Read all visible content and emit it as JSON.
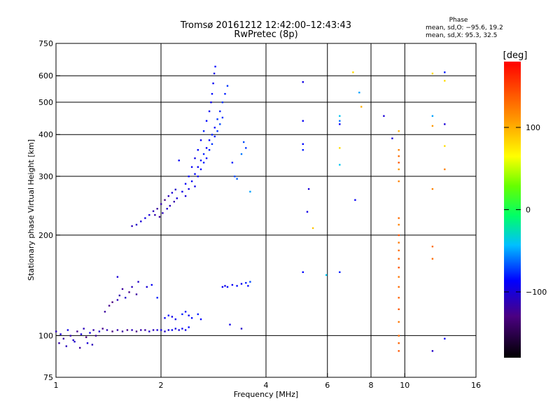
{
  "header": {
    "title_line1": "Tromsø 20161212 12:42:00–12:43:43",
    "title_line2": "RwPretec (8p)"
  },
  "phase_stats": {
    "heading": "Phase",
    "line_o": "mean, sd,O: −95.6, 19.2",
    "line_x": "mean, sd,X:  95.3, 32.5"
  },
  "colorbar": {
    "label": "[deg]",
    "ticks": [
      {
        "value": 100,
        "label": "100"
      },
      {
        "value": 0,
        "label": "0"
      },
      {
        "value": -100,
        "label": "−100"
      }
    ],
    "range": [
      -180,
      180
    ]
  },
  "chart_data": {
    "type": "scatter",
    "xlabel": "Frequency [MHz]",
    "ylabel": "Stationary phase Virtual Height [km]",
    "xscale": "log",
    "yscale": "log",
    "xlim": [
      1,
      16
    ],
    "ylim": [
      75,
      750
    ],
    "xticks": [
      {
        "value": 1,
        "label": "1"
      },
      {
        "value": 2,
        "label": "2"
      },
      {
        "value": 4,
        "label": "4"
      },
      {
        "value": 6,
        "label": "6"
      },
      {
        "value": 8,
        "label": "8"
      },
      {
        "value": 10,
        "label": "10"
      },
      {
        "value": 16,
        "label": "16"
      }
    ],
    "yticks": [
      {
        "value": 75,
        "label": "75"
      },
      {
        "value": 100,
        "label": "100"
      },
      {
        "value": 200,
        "label": "200"
      },
      {
        "value": 300,
        "label": "300"
      },
      {
        "value": 400,
        "label": "400"
      },
      {
        "value": 500,
        "label": "500"
      },
      {
        "value": 600,
        "label": "600"
      },
      {
        "value": 750,
        "label": "750"
      }
    ],
    "grid_x": [
      2,
      4,
      6,
      8,
      10
    ],
    "grid_y": [
      100,
      200,
      300,
      400,
      500,
      600
    ],
    "series": [
      {
        "points": [
          [
            1.0,
            103,
            -110
          ],
          [
            1.03,
            101,
            -100
          ],
          [
            1.05,
            98,
            -120
          ],
          [
            1.08,
            104,
            -95
          ],
          [
            1.1,
            100,
            -115
          ],
          [
            1.12,
            97,
            -105
          ],
          [
            1.15,
            103,
            -125
          ],
          [
            1.18,
            101,
            -100
          ],
          [
            1.2,
            105,
            -110
          ],
          [
            1.22,
            99,
            -130
          ],
          [
            1.25,
            102,
            -95
          ],
          [
            1.28,
            104,
            -115
          ],
          [
            1.3,
            100,
            -120
          ],
          [
            1.33,
            103,
            -105
          ],
          [
            1.36,
            105,
            -125
          ],
          [
            1.4,
            104,
            -110
          ],
          [
            1.45,
            103,
            -130
          ],
          [
            1.5,
            104,
            -115
          ],
          [
            1.55,
            103,
            -120
          ],
          [
            1.6,
            104,
            -125
          ],
          [
            1.65,
            104,
            -110
          ],
          [
            1.7,
            103,
            -130
          ],
          [
            1.75,
            104,
            -115
          ],
          [
            1.8,
            104,
            -120
          ],
          [
            1.85,
            103,
            -105
          ],
          [
            1.9,
            104,
            -110
          ],
          [
            1.95,
            104,
            -100
          ],
          [
            2.0,
            104,
            -95
          ],
          [
            2.05,
            103,
            -105
          ],
          [
            2.1,
            104,
            -100
          ],
          [
            2.15,
            104,
            -90
          ],
          [
            2.2,
            105,
            -95
          ],
          [
            2.25,
            104,
            -100
          ],
          [
            2.3,
            105,
            -90
          ],
          [
            2.35,
            104,
            -95
          ],
          [
            2.4,
            106,
            -85
          ],
          [
            1.02,
            95,
            -115
          ],
          [
            1.07,
            93,
            -110
          ],
          [
            1.13,
            96,
            -105
          ],
          [
            1.17,
            92,
            -120
          ],
          [
            1.23,
            95,
            -100
          ],
          [
            1.27,
            94,
            -110
          ],
          [
            1.38,
            118,
            -120
          ],
          [
            1.42,
            123,
            -125
          ],
          [
            1.45,
            126,
            -130
          ],
          [
            1.5,
            128,
            -110
          ],
          [
            1.52,
            132,
            -115
          ],
          [
            1.55,
            138,
            -120
          ],
          [
            1.58,
            130,
            -105
          ],
          [
            1.62,
            135,
            -125
          ],
          [
            1.5,
            150,
            -100
          ],
          [
            1.65,
            140,
            -110
          ],
          [
            1.7,
            133,
            -120
          ],
          [
            1.72,
            145,
            -105
          ],
          [
            1.82,
            140,
            -100
          ],
          [
            1.88,
            142,
            -90
          ],
          [
            1.95,
            130,
            -80
          ],
          [
            2.05,
            113,
            -90
          ],
          [
            2.1,
            115,
            -85
          ],
          [
            2.15,
            114,
            -95
          ],
          [
            2.2,
            112,
            -90
          ],
          [
            2.3,
            116,
            -80
          ],
          [
            2.35,
            118,
            -85
          ],
          [
            2.4,
            115,
            -90
          ],
          [
            2.45,
            113,
            -85
          ],
          [
            2.55,
            116,
            -80
          ],
          [
            2.6,
            112,
            -85
          ],
          [
            3.0,
            140,
            -90
          ],
          [
            3.05,
            141,
            -95
          ],
          [
            3.1,
            140,
            -85
          ],
          [
            3.2,
            142,
            -90
          ],
          [
            3.3,
            141,
            -85
          ],
          [
            3.4,
            143,
            -90
          ],
          [
            3.5,
            144,
            -80
          ],
          [
            3.55,
            141,
            -85
          ],
          [
            3.6,
            145,
            -70
          ],
          [
            1.65,
            213,
            -110
          ],
          [
            1.7,
            215,
            -105
          ],
          [
            1.75,
            220,
            -100
          ],
          [
            1.8,
            225,
            -95
          ],
          [
            1.85,
            230,
            -100
          ],
          [
            1.9,
            236,
            -110
          ],
          [
            1.95,
            240,
            -120
          ],
          [
            2.0,
            248,
            -115
          ],
          [
            2.05,
            255,
            -125
          ],
          [
            2.1,
            262,
            -110
          ],
          [
            2.15,
            268,
            -100
          ],
          [
            2.2,
            274,
            -105
          ],
          [
            1.92,
            230,
            -115
          ],
          [
            1.98,
            227,
            -120
          ],
          [
            2.02,
            233,
            -110
          ],
          [
            2.08,
            240,
            -105
          ],
          [
            2.12,
            245,
            -110
          ],
          [
            2.18,
            252,
            -115
          ],
          [
            2.22,
            258,
            -100
          ],
          [
            2.3,
            270,
            -95
          ],
          [
            2.35,
            285,
            -90
          ],
          [
            2.4,
            300,
            -85
          ],
          [
            2.45,
            320,
            -90
          ],
          [
            2.5,
            340,
            -95
          ],
          [
            2.55,
            360,
            -85
          ],
          [
            2.6,
            385,
            -90
          ],
          [
            2.65,
            410,
            -80
          ],
          [
            2.7,
            440,
            -85
          ],
          [
            2.75,
            470,
            -90
          ],
          [
            2.78,
            500,
            -95
          ],
          [
            2.8,
            530,
            -85
          ],
          [
            2.82,
            570,
            -90
          ],
          [
            2.84,
            610,
            -95
          ],
          [
            2.86,
            640,
            -85
          ],
          [
            2.35,
            262,
            -100
          ],
          [
            2.4,
            275,
            -95
          ],
          [
            2.45,
            290,
            -90
          ],
          [
            2.5,
            305,
            -85
          ],
          [
            2.55,
            320,
            -90
          ],
          [
            2.6,
            335,
            -85
          ],
          [
            2.65,
            350,
            -80
          ],
          [
            2.7,
            365,
            -90
          ],
          [
            2.75,
            385,
            -85
          ],
          [
            2.8,
            400,
            -80
          ],
          [
            2.85,
            420,
            -85
          ],
          [
            2.9,
            445,
            -75
          ],
          [
            2.95,
            470,
            -80
          ],
          [
            3.0,
            500,
            -75
          ],
          [
            3.05,
            530,
            -80
          ],
          [
            3.1,
            560,
            -75
          ],
          [
            2.5,
            280,
            -95
          ],
          [
            2.55,
            300,
            -90
          ],
          [
            2.6,
            315,
            -85
          ],
          [
            2.65,
            330,
            -80
          ],
          [
            2.7,
            340,
            -85
          ],
          [
            2.75,
            360,
            -80
          ],
          [
            2.8,
            375,
            -75
          ],
          [
            2.85,
            395,
            -80
          ],
          [
            2.9,
            410,
            -75
          ],
          [
            2.95,
            430,
            -70
          ],
          [
            3.0,
            450,
            -75
          ],
          [
            2.25,
            335,
            -90
          ],
          [
            3.2,
            330,
            -80
          ],
          [
            3.25,
            300,
            -70
          ],
          [
            3.3,
            295,
            -65
          ],
          [
            3.4,
            350,
            -60
          ],
          [
            3.45,
            380,
            -70
          ],
          [
            3.5,
            365,
            -75
          ],
          [
            3.6,
            270,
            -50
          ],
          [
            3.15,
            108,
            -95
          ],
          [
            3.4,
            105,
            -105
          ],
          [
            5.1,
            575,
            -95
          ],
          [
            5.1,
            440,
            -90
          ],
          [
            5.1,
            375,
            -85
          ],
          [
            5.1,
            360,
            -80
          ],
          [
            5.3,
            275,
            -100
          ],
          [
            5.45,
            210,
            90
          ],
          [
            5.25,
            235,
            -95
          ],
          [
            5.1,
            155,
            -85
          ],
          [
            5.95,
            152,
            -40
          ],
          [
            6.5,
            155,
            -80
          ],
          [
            6.5,
            455,
            -40
          ],
          [
            6.5,
            440,
            -60
          ],
          [
            6.5,
            430,
            -90
          ],
          [
            6.5,
            365,
            80
          ],
          [
            6.5,
            325,
            -40
          ],
          [
            7.1,
            615,
            80
          ],
          [
            7.4,
            535,
            -50
          ],
          [
            7.5,
            485,
            100
          ],
          [
            7.2,
            255,
            -90
          ],
          [
            8.7,
            455,
            -100
          ],
          [
            9.2,
            390,
            -100
          ],
          [
            9.6,
            410,
            100
          ],
          [
            9.6,
            360,
            120
          ],
          [
            9.6,
            345,
            130
          ],
          [
            9.6,
            330,
            140
          ],
          [
            9.6,
            315,
            110
          ],
          [
            9.6,
            290,
            120
          ],
          [
            9.6,
            225,
            130
          ],
          [
            9.6,
            215,
            120
          ],
          [
            9.6,
            200,
            140
          ],
          [
            9.6,
            190,
            125
          ],
          [
            9.6,
            180,
            130
          ],
          [
            9.6,
            170,
            135
          ],
          [
            9.6,
            160,
            140
          ],
          [
            9.6,
            150,
            125
          ],
          [
            9.6,
            140,
            130
          ],
          [
            9.6,
            130,
            135
          ],
          [
            9.6,
            120,
            140
          ],
          [
            9.6,
            110,
            125
          ],
          [
            9.6,
            100,
            130
          ],
          [
            9.6,
            95,
            135
          ],
          [
            9.6,
            90,
            140
          ],
          [
            12.0,
            610,
            80
          ],
          [
            12.0,
            455,
            -50
          ],
          [
            12.0,
            425,
            110
          ],
          [
            12.0,
            275,
            120
          ],
          [
            12.0,
            185,
            130
          ],
          [
            12.0,
            170,
            130
          ],
          [
            12.0,
            90,
            -105
          ],
          [
            13.0,
            615,
            -80
          ],
          [
            13.0,
            580,
            80
          ],
          [
            13.0,
            430,
            -100
          ],
          [
            13.0,
            370,
            80
          ],
          [
            13.0,
            315,
            120
          ],
          [
            13.0,
            98,
            -90
          ]
        ]
      }
    ]
  }
}
